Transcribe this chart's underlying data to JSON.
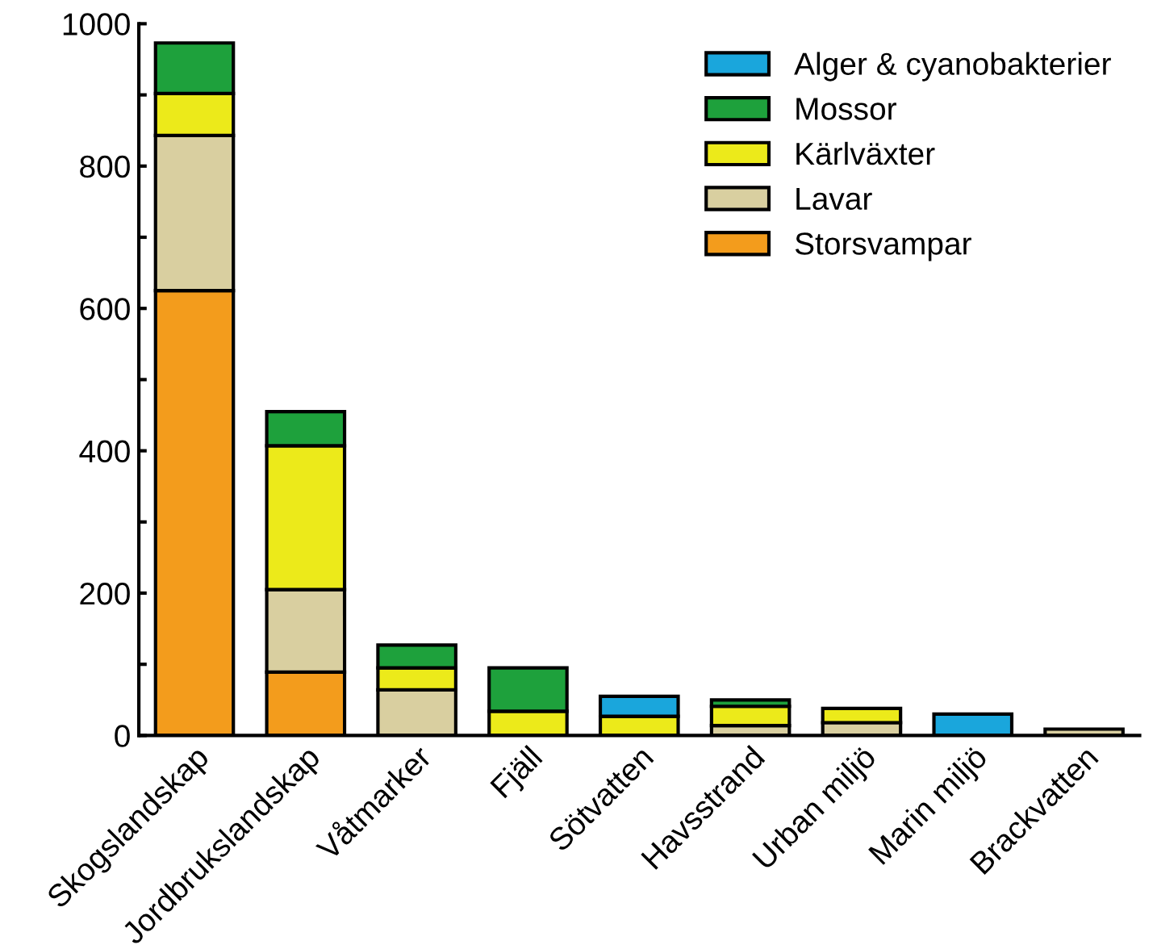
{
  "chart_data": {
    "type": "bar",
    "stacked": true,
    "legend": "top right",
    "categories": [
      "Skogslandskap",
      "Jordbrukslandskap",
      "Våtmarker",
      "Fjäll",
      "Sötvatten",
      "Havsstrand",
      "Urban miljö",
      "Marin miljö",
      "Brackvatten"
    ],
    "series": [
      {
        "name": "Storsvampar",
        "color": "#f39c1c",
        "values": [
          625,
          89,
          null,
          null,
          null,
          null,
          null,
          null,
          null
        ]
      },
      {
        "name": "Lavar",
        "color": "#d9cfa0",
        "values": [
          218,
          116,
          64,
          null,
          null,
          14,
          18,
          null,
          9
        ]
      },
      {
        "name": "Kärlväxter",
        "color": "#ecea1a",
        "values": [
          59,
          202,
          31,
          34,
          27,
          27,
          20,
          null,
          null
        ]
      },
      {
        "name": "Mossor",
        "color": "#1ea13c",
        "values": [
          71,
          48,
          32,
          61,
          null,
          9,
          null,
          null,
          null
        ]
      },
      {
        "name": "Alger & cyanobakterier",
        "color": "#1aa6dc",
        "values": [
          null,
          null,
          null,
          null,
          28,
          null,
          null,
          30,
          null
        ]
      }
    ],
    "ylim": [
      0,
      1000
    ],
    "yticks": [
      0,
      {
        "value": 100,
        "label": null
      },
      200,
      {
        "value": 300,
        "label": null
      },
      400,
      {
        "value": 500,
        "label": null
      },
      600,
      {
        "value": 700,
        "label": null
      },
      800,
      {
        "value": 900,
        "label": null
      },
      1000
    ],
    "grid": false
  }
}
